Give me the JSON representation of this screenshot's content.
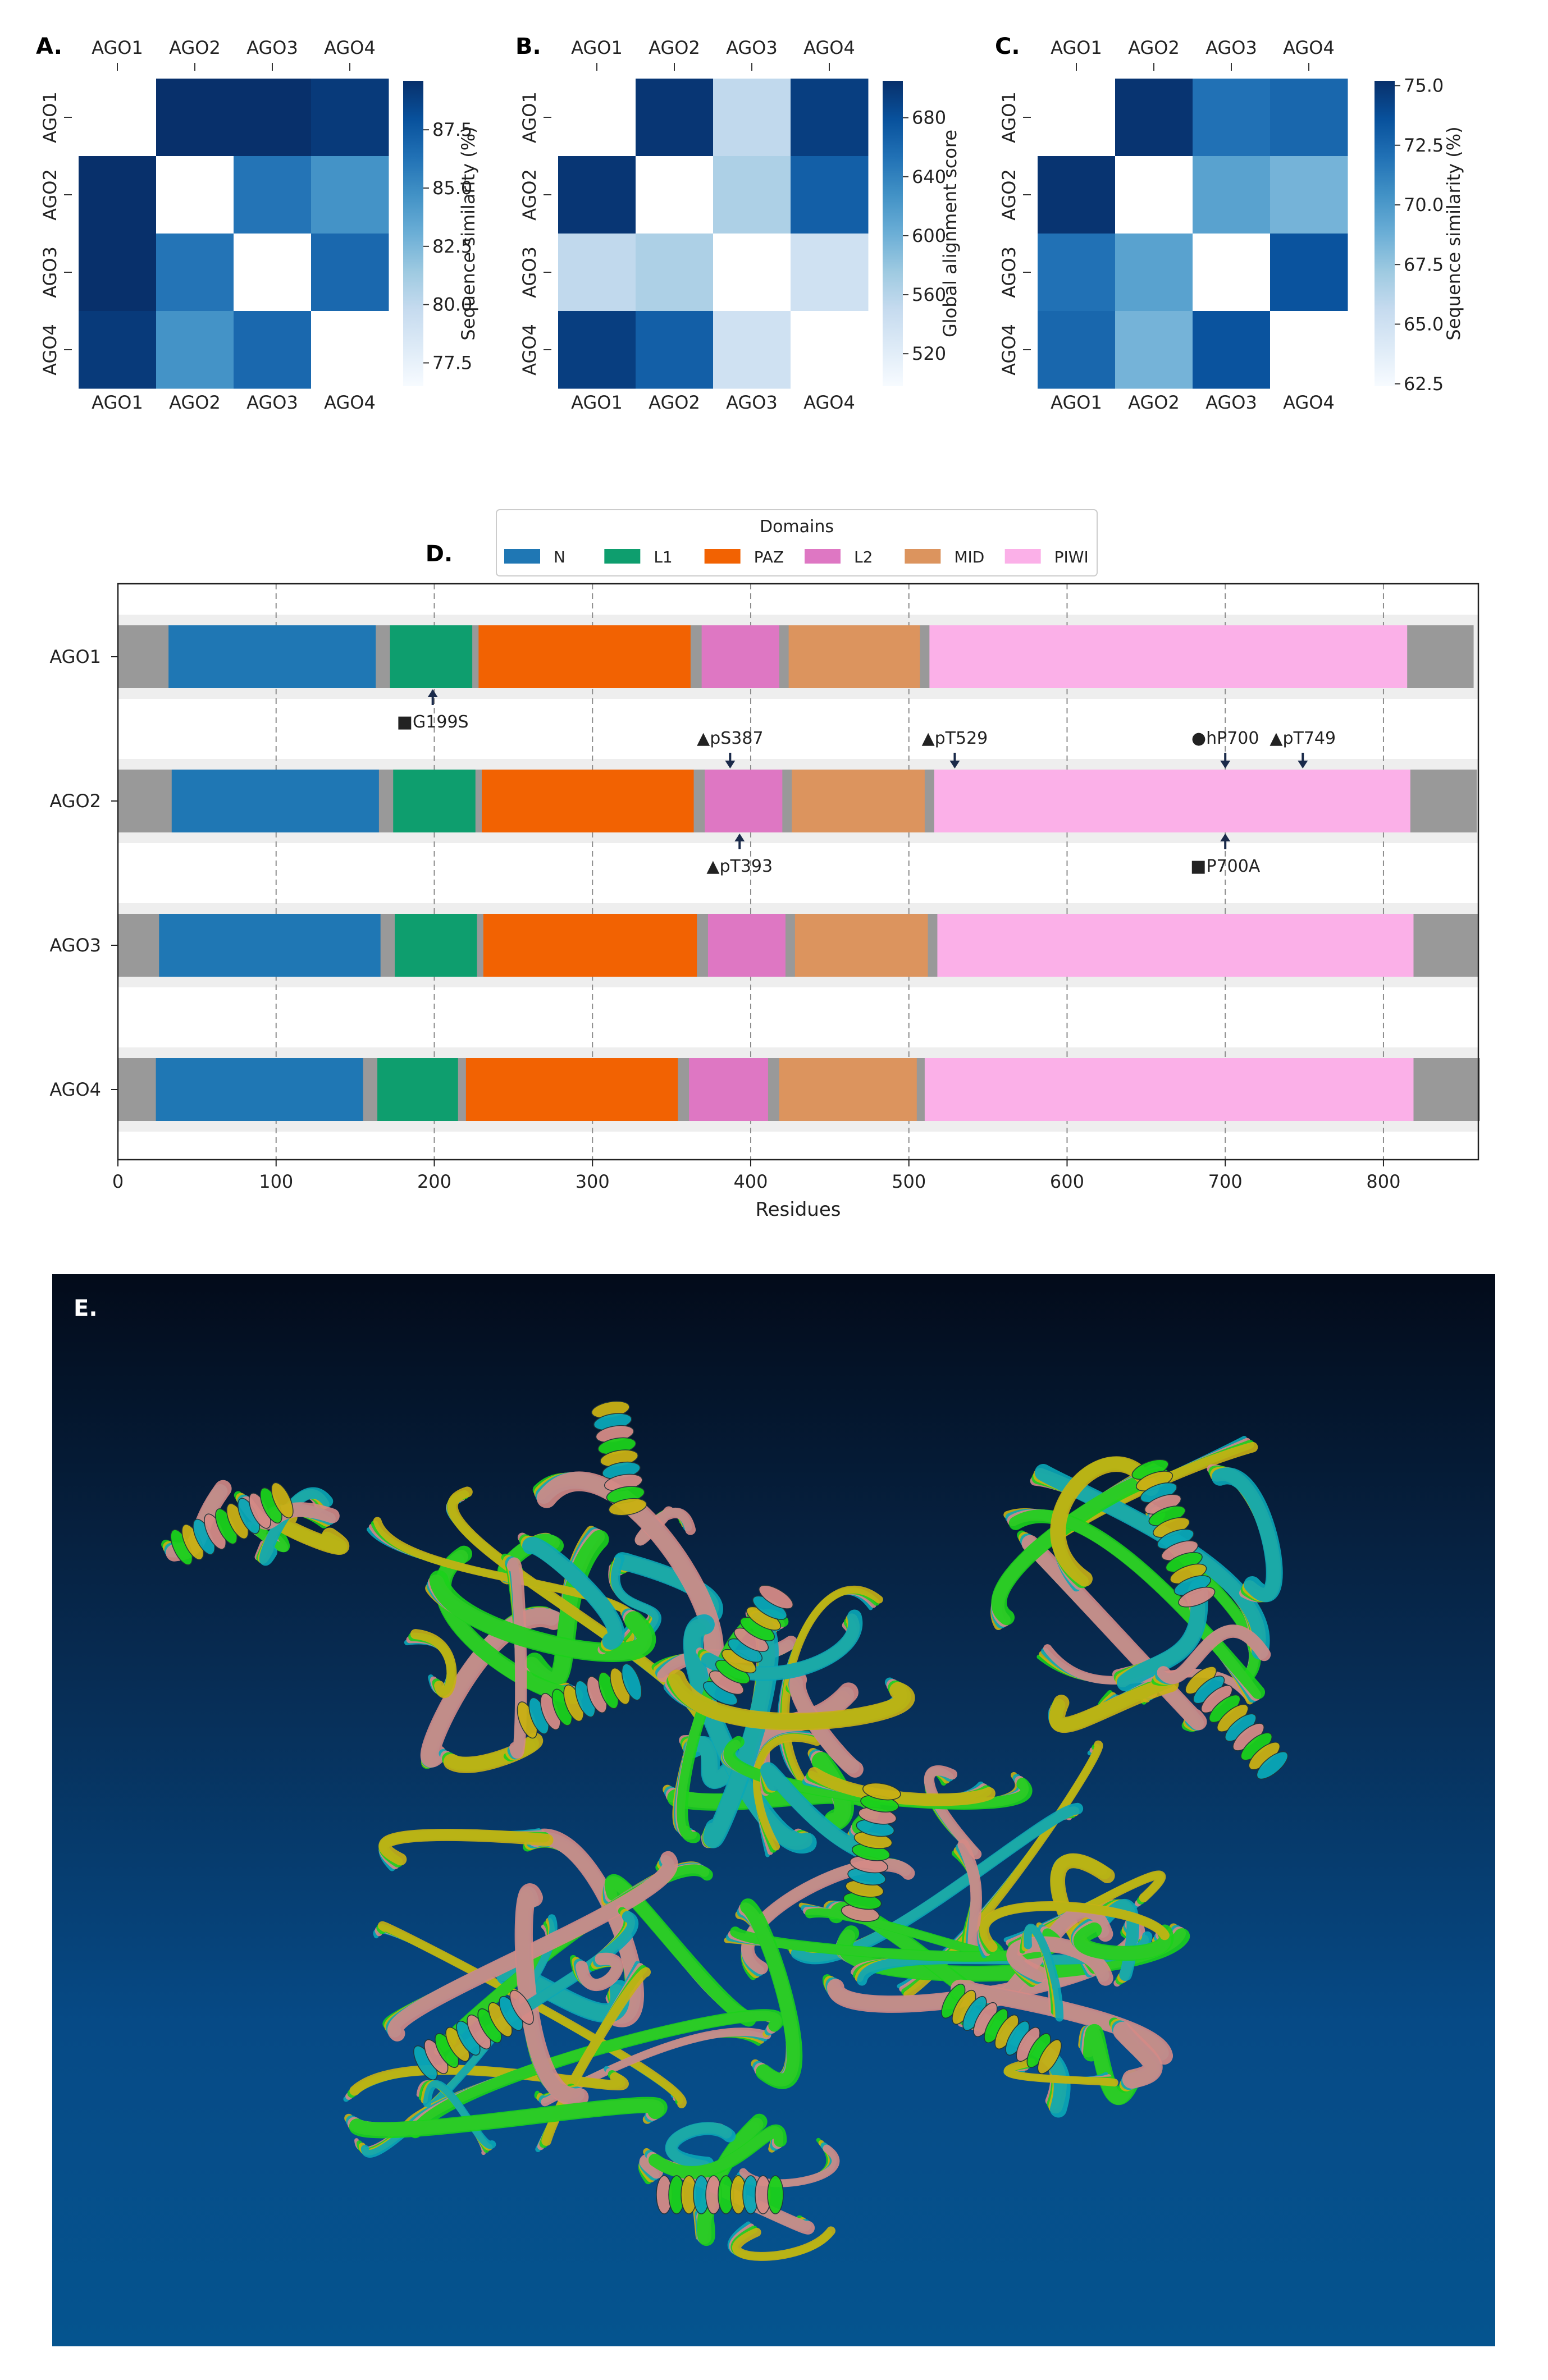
{
  "colors": {
    "cmap": [
      "#f7fbff",
      "#deebf7",
      "#c6dbef",
      "#9ecae1",
      "#6baed6",
      "#4292c6",
      "#2171b5",
      "#08519c",
      "#08306b"
    ],
    "structure": [
      "#1bd11b",
      "#c9b014",
      "#0aa7b7",
      "#d48a86"
    ],
    "gray": "#999999"
  },
  "heatmaps": [
    {
      "panel": "A.",
      "labels": [
        "AGO1",
        "AGO2",
        "AGO3",
        "AGO4"
      ],
      "matrix": [
        [
          null,
          90.2,
          90.6,
          89.1
        ],
        [
          90.2,
          null,
          86.2,
          84.6
        ],
        [
          90.6,
          86.2,
          null,
          86.8
        ],
        [
          89.1,
          84.6,
          86.8,
          null
        ]
      ],
      "vmin": 76.5,
      "vmax": 89.6,
      "colorbar_label": "Sequence similarity (%)",
      "ticks": [
        87.5,
        85.0,
        82.5,
        80.0,
        77.5
      ],
      "tick_labels": [
        "87.5",
        "85.0",
        "82.5",
        "80.0",
        "77.5"
      ]
    },
    {
      "panel": "B.",
      "labels": [
        "AGO1",
        "AGO2",
        "AGO3",
        "AGO4"
      ],
      "matrix": [
        [
          null,
          700,
          553,
          694
        ],
        [
          700,
          null,
          566,
          668
        ],
        [
          553,
          566,
          null,
          540
        ],
        [
          694,
          668,
          540,
          null
        ]
      ],
      "vmin": 498,
      "vmax": 705,
      "colorbar_label": "Global alignment score",
      "ticks": [
        680,
        640,
        600,
        560,
        520
      ],
      "tick_labels": [
        "680",
        "640",
        "600",
        "560",
        "520"
      ]
    },
    {
      "panel": "C.",
      "labels": [
        "AGO1",
        "AGO2",
        "AGO3",
        "AGO4"
      ],
      "matrix": [
        [
          null,
          75.0,
          72.0,
          72.5
        ],
        [
          75.0,
          null,
          69.5,
          68.5
        ],
        [
          72.0,
          69.5,
          null,
          73.5
        ],
        [
          72.5,
          68.5,
          73.5,
          null
        ]
      ],
      "vmin": 62.4,
      "vmax": 75.2,
      "colorbar_label": "Sequence similarity (%)",
      "ticks": [
        75.0,
        72.5,
        70.0,
        67.5,
        65.0,
        62.5
      ],
      "tick_labels": [
        "75.0",
        "72.5",
        "70.0",
        "67.5",
        "65.0",
        "62.5"
      ]
    }
  ],
  "chart_data": {
    "type": "bar",
    "panel": "D.",
    "xlabel": "Residues",
    "xlim": [
      0,
      860
    ],
    "xticks": [
      0,
      100,
      200,
      300,
      400,
      500,
      600,
      700,
      800
    ],
    "grid": "vertical dashed",
    "legend": {
      "title": "Domains",
      "placement": "top-center"
    },
    "domains": [
      {
        "name": "N",
        "color": "#1f77b4"
      },
      {
        "name": "L1",
        "color": "#0e9e6e"
      },
      {
        "name": "PAZ",
        "color": "#f26202"
      },
      {
        "name": "L2",
        "color": "#de77c3"
      },
      {
        "name": "MID",
        "color": "#dc945e"
      },
      {
        "name": "PIWI",
        "color": "#fbb0e8"
      }
    ],
    "proteins": [
      {
        "name": "AGO1",
        "length": 857,
        "segments": [
          {
            "domain": "N",
            "start": 32,
            "end": 163
          },
          {
            "domain": "L1",
            "start": 172,
            "end": 224
          },
          {
            "domain": "PAZ",
            "start": 228,
            "end": 362
          },
          {
            "domain": "L2",
            "start": 369,
            "end": 418
          },
          {
            "domain": "MID",
            "start": 424,
            "end": 507
          },
          {
            "domain": "PIWI",
            "start": 513,
            "end": 815
          }
        ]
      },
      {
        "name": "AGO2",
        "length": 859,
        "segments": [
          {
            "domain": "N",
            "start": 34,
            "end": 165
          },
          {
            "domain": "L1",
            "start": 174,
            "end": 226
          },
          {
            "domain": "PAZ",
            "start": 230,
            "end": 364
          },
          {
            "domain": "L2",
            "start": 371,
            "end": 420
          },
          {
            "domain": "MID",
            "start": 426,
            "end": 510
          },
          {
            "domain": "PIWI",
            "start": 516,
            "end": 817
          }
        ]
      },
      {
        "name": "AGO3",
        "length": 860,
        "segments": [
          {
            "domain": "N",
            "start": 26,
            "end": 166
          },
          {
            "domain": "L1",
            "start": 175,
            "end": 227
          },
          {
            "domain": "PAZ",
            "start": 231,
            "end": 366
          },
          {
            "domain": "L2",
            "start": 373,
            "end": 422
          },
          {
            "domain": "MID",
            "start": 428,
            "end": 512
          },
          {
            "domain": "PIWI",
            "start": 518,
            "end": 819
          }
        ]
      },
      {
        "name": "AGO4",
        "length": 861,
        "segments": [
          {
            "domain": "N",
            "start": 24,
            "end": 155
          },
          {
            "domain": "L1",
            "start": 164,
            "end": 215
          },
          {
            "domain": "PAZ",
            "start": 220,
            "end": 354
          },
          {
            "domain": "L2",
            "start": 361,
            "end": 411
          },
          {
            "domain": "MID",
            "start": 418,
            "end": 505
          },
          {
            "domain": "PIWI",
            "start": 510,
            "end": 819
          }
        ]
      }
    ],
    "annotations": [
      {
        "protein": "AGO1",
        "residue": 199,
        "side": "below",
        "label": "■G199S"
      },
      {
        "protein": "AGO2",
        "residue": 387,
        "side": "above",
        "label": "▲pS387"
      },
      {
        "protein": "AGO2",
        "residue": 529,
        "side": "above",
        "label": "▲pT529"
      },
      {
        "protein": "AGO2",
        "residue": 700,
        "side": "above",
        "label": "●hP700"
      },
      {
        "protein": "AGO2",
        "residue": 749,
        "side": "above",
        "label": "▲pT749"
      },
      {
        "protein": "AGO2",
        "residue": 393,
        "side": "below",
        "label": "▲pT393"
      },
      {
        "protein": "AGO2",
        "residue": 700,
        "side": "below",
        "label": "■P700A"
      }
    ]
  },
  "panel_e": {
    "label": "E."
  }
}
